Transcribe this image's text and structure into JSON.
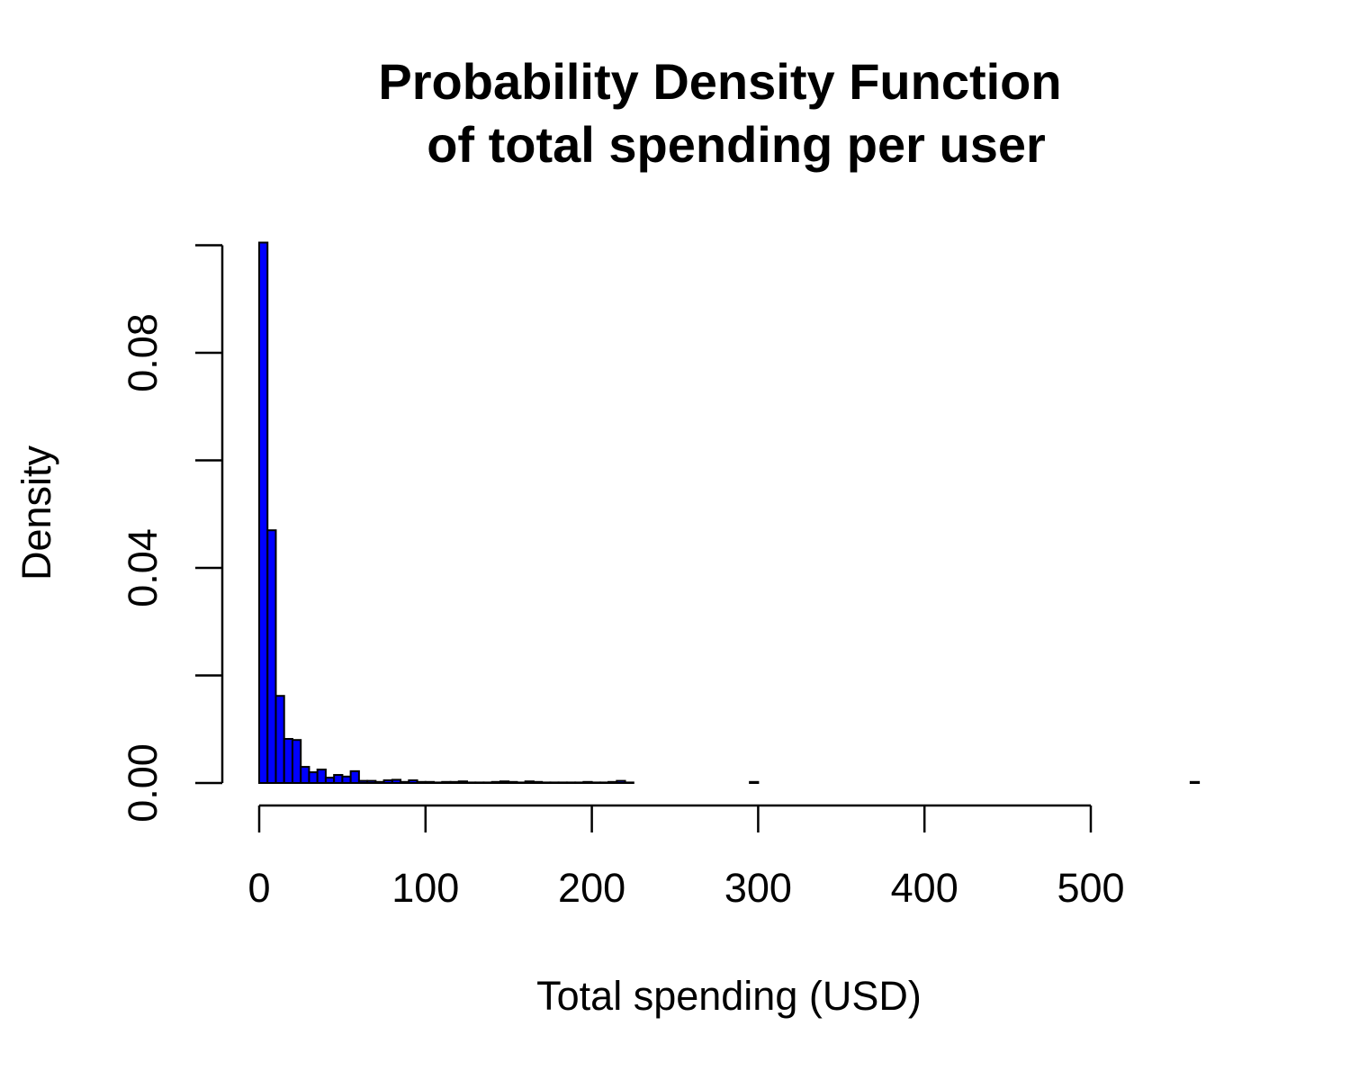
{
  "chart_data": {
    "type": "bar",
    "title": "Probability Density Function\n of total spending per user",
    "title_lines": [
      "Probability Density Function",
      "of total spending per user"
    ],
    "xlabel": "Total spending (USD)",
    "ylabel": "Density",
    "xlim": [
      0,
      565
    ],
    "ylim": [
      0,
      0.1
    ],
    "x_ticks": [
      0,
      100,
      200,
      300,
      400,
      500
    ],
    "x_tick_labels": [
      "0",
      "100",
      "200",
      "300",
      "400",
      "500"
    ],
    "y_ticks": [
      0,
      0.02,
      0.04,
      0.06,
      0.08,
      0.1
    ],
    "y_tick_labels": [
      "0.00",
      "",
      "0.04",
      "",
      "0.08",
      ""
    ],
    "bin_width": 5,
    "bin_edges_start": [
      0,
      5,
      10,
      15,
      20,
      25,
      30,
      35,
      40,
      45,
      50,
      55,
      60,
      65,
      70,
      75,
      80,
      85,
      90,
      95,
      100,
      105,
      110,
      115,
      120,
      125,
      130,
      135,
      140,
      145,
      150,
      155,
      160,
      165,
      170,
      175,
      180,
      185,
      190,
      195,
      200,
      205,
      210,
      215,
      220,
      225,
      230,
      235,
      240,
      245,
      250,
      255,
      260,
      265,
      270,
      275,
      280,
      285,
      290,
      295,
      300,
      305,
      310,
      315,
      320,
      325,
      330,
      335,
      340,
      345,
      350,
      355,
      360,
      365,
      370,
      375,
      380,
      385,
      390,
      395,
      400,
      405,
      410,
      415,
      420,
      425,
      430,
      435,
      440,
      445,
      450,
      455,
      460,
      465,
      470,
      475,
      480,
      485,
      490,
      495,
      500,
      505,
      510,
      515,
      520,
      525,
      530,
      535,
      540,
      545,
      550,
      555,
      560
    ],
    "values": [
      0.1005,
      0.047,
      0.0162,
      0.0082,
      0.008,
      0.003,
      0.002,
      0.0025,
      0.001,
      0.0015,
      0.0012,
      0.0022,
      0.0004,
      0.0004,
      0.0002,
      0.0005,
      0.0006,
      0.0002,
      0.0005,
      0.0002,
      0.0002,
      0.0001,
      0.0002,
      0.0002,
      0.0003,
      0.0001,
      0.0001,
      0.0001,
      0.0002,
      0.0003,
      0.0002,
      0.0001,
      0.0003,
      0.0002,
      0.0001,
      0.0001,
      0.0001,
      0.0001,
      0.0001,
      0.0002,
      0.0001,
      0.0001,
      0.0002,
      0.0004,
      0.0001,
      0,
      0,
      0,
      0,
      0,
      0,
      0,
      0,
      0,
      0,
      0,
      0,
      0,
      0,
      0.0002,
      0,
      0,
      0,
      0,
      0,
      0,
      0,
      0,
      0,
      0,
      0,
      0,
      0,
      0,
      0,
      0,
      0,
      0,
      0,
      0,
      0,
      0,
      0,
      0,
      0,
      0,
      0,
      0,
      0,
      0,
      0,
      0,
      0,
      0,
      0,
      0,
      0,
      0,
      0,
      0,
      0,
      0,
      0,
      0,
      0,
      0,
      0,
      0,
      0,
      0,
      0,
      0,
      0.0002
    ],
    "fill_color": "#0000ff",
    "border_color": "#000000",
    "background": "#ffffff",
    "grid": false,
    "legend": "none"
  }
}
